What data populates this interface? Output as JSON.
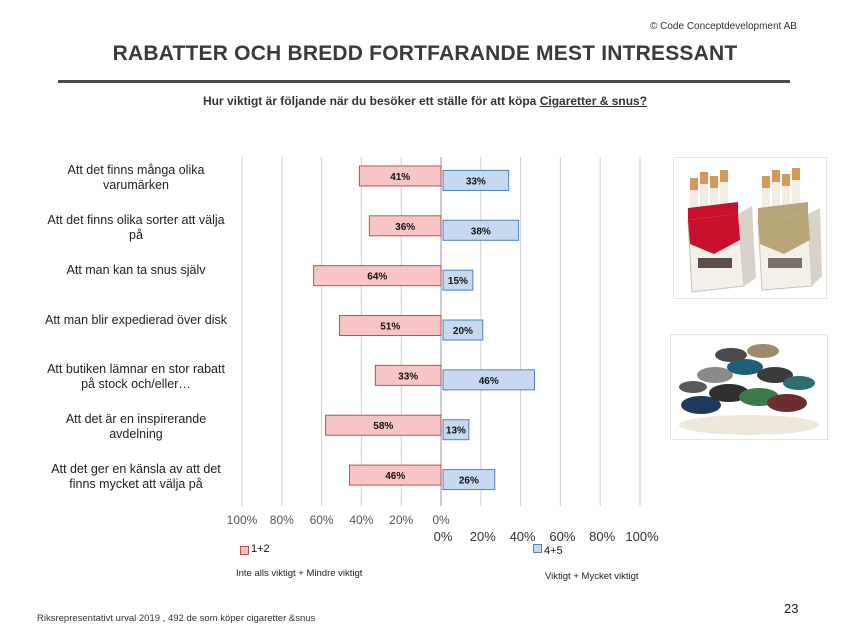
{
  "header": {
    "copyright": "© Code Conceptdevelopment AB",
    "title": "RABATTER OCH BREDD FORTFARANDE MEST INTRESSANT",
    "subtitle_prefix": "Hur viktigt är följande när du besöker ett ställe för att köpa ",
    "subtitle_emphasis": "Cigaretter & snus?"
  },
  "chart_data": {
    "type": "bar",
    "orientation": "horizontal-diverging",
    "categories": [
      "Att det finns många olika varumärken",
      "Att det finns olika sorter att välja på",
      "Att man kan ta snus själv",
      "Att man blir expedierad över disk",
      "Att butiken lämnar en stor rabatt på stock och/eller…",
      "Att det är en inspirerande avdelning",
      "Att det ger en känsla av att det finns mycket att välja på"
    ],
    "series": [
      {
        "name": "1+2",
        "values": [
          41,
          36,
          64,
          51,
          33,
          58,
          46
        ],
        "labels": [
          "41%",
          "36%",
          "64%",
          "51%",
          "33%",
          "58%",
          "46%"
        ],
        "color": "#f7c5c5",
        "border": "#c0504d"
      },
      {
        "name": "4+5",
        "values": [
          33,
          38,
          15,
          20,
          46,
          13,
          26
        ],
        "labels": [
          "33%",
          "38%",
          "15%",
          "20%",
          "46%",
          "13%",
          "26%"
        ],
        "color": "#c6d9f1",
        "border": "#4f81bd"
      }
    ],
    "left_ticks": [
      "100%",
      "80%",
      "60%",
      "40%",
      "20%",
      "0%"
    ],
    "right_ticks": [
      "0%",
      "20%",
      "40%",
      "60%",
      "80%",
      "100%"
    ],
    "xlim": [
      0,
      100
    ],
    "grid": true,
    "legend": [
      {
        "label": "1+2",
        "note": "Inte alls viktigt + Mindre viktigt"
      },
      {
        "label": "4+5",
        "note": "Viktigt + Mycket viktigt"
      }
    ]
  },
  "images": [
    {
      "name": "cigarette-packs-photo"
    },
    {
      "name": "snus-tins-photo"
    }
  ],
  "footer": {
    "note": "Riksrepresentativt urval 2019 , 492  de som köper cigaretter &snus",
    "page_number": "23"
  }
}
